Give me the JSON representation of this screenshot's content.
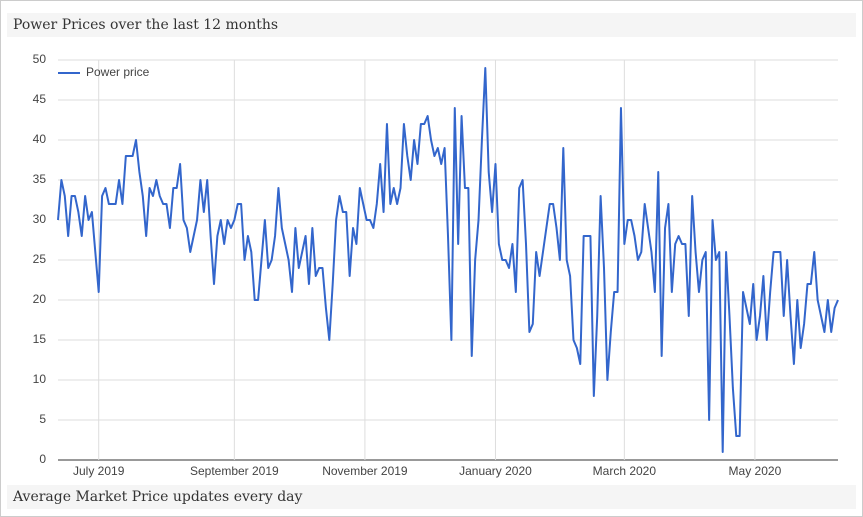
{
  "chart_data": {
    "type": "line",
    "title": "Power Prices over the last 12 months",
    "caption": "Average Market Price updates every day",
    "series": [
      {
        "name": "Power price",
        "color": "#3366cc",
        "values": [
          30,
          35,
          33,
          28,
          33,
          33,
          31,
          28,
          33,
          30,
          31,
          26,
          21,
          33,
          34,
          32,
          32,
          32,
          35,
          32,
          38,
          38,
          38,
          40,
          36,
          33,
          28,
          34,
          33,
          35,
          33,
          32,
          32,
          29,
          34,
          34,
          37,
          30,
          29,
          26,
          28,
          30,
          35,
          31,
          35,
          28,
          22,
          28,
          30,
          27,
          30,
          29,
          30,
          32,
          32,
          25,
          28,
          26,
          20,
          20,
          25,
          30,
          24,
          25,
          28,
          34,
          29,
          27,
          25,
          21,
          29,
          24,
          26,
          28,
          22,
          29,
          23,
          24,
          24,
          19,
          15,
          22,
          30,
          33,
          31,
          31,
          23,
          29,
          27,
          34,
          32,
          30,
          30,
          29,
          32,
          37,
          31,
          42,
          32,
          34,
          32,
          34,
          42,
          38,
          35,
          40,
          37,
          42,
          42,
          43,
          40,
          38,
          39,
          37,
          39,
          28,
          15,
          44,
          27,
          43,
          34,
          34,
          13,
          25,
          30,
          40,
          49,
          36,
          31,
          37,
          27,
          25,
          25,
          24,
          27,
          21,
          34,
          35,
          27,
          16,
          17,
          26,
          23,
          26,
          29,
          32,
          32,
          29,
          25,
          39,
          25,
          23,
          15,
          14,
          12,
          28,
          28,
          28,
          8,
          18,
          33,
          24,
          10,
          16,
          21,
          21,
          44,
          27,
          30,
          30,
          28,
          25,
          26,
          32,
          29,
          26,
          21,
          36,
          13,
          29,
          32,
          21,
          27,
          28,
          27,
          27,
          18,
          33,
          26,
          21,
          25,
          26,
          5,
          30,
          25,
          26,
          1,
          26,
          18,
          9,
          3,
          3,
          21,
          19,
          17,
          22,
          15,
          18,
          23,
          15,
          21,
          26,
          26,
          26,
          18,
          25,
          18,
          12,
          20,
          14,
          17,
          22,
          22,
          26,
          20,
          18,
          16,
          20,
          16,
          19,
          20
        ]
      }
    ],
    "xlim": [
      0,
      230
    ],
    "xticks": [
      {
        "value": 12,
        "label": "July 2019"
      },
      {
        "value": 52,
        "label": "September 2019"
      },
      {
        "value": 90.5,
        "label": "November 2019"
      },
      {
        "value": 129,
        "label": "January 2020"
      },
      {
        "value": 167,
        "label": "March 2020"
      },
      {
        "value": 205.5,
        "label": "May 2020"
      }
    ],
    "ylim": [
      0,
      50
    ],
    "yticks": [
      0,
      5,
      10,
      15,
      20,
      25,
      30,
      35,
      40,
      45,
      50
    ],
    "grid": true,
    "legend": "top-left"
  }
}
